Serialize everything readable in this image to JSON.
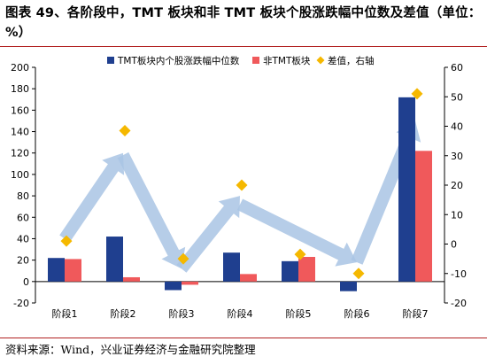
{
  "title": "图表 49、各阶段中，TMT 板块和非 TMT 板块个股涨跌幅中位数及差值（单位：%）",
  "source": "资料来源：Wind，兴业证券经济与金融研究院整理",
  "colors": {
    "series1": "#1f3f8f",
    "series2": "#f0595b",
    "diff": "#f5b800",
    "arrow": "#a9c4e4",
    "accent_rule": "#b22222"
  },
  "chart_data": {
    "type": "bar",
    "categories": [
      "阶段1",
      "阶段2",
      "阶段3",
      "阶段4",
      "阶段5",
      "阶段6",
      "阶段7"
    ],
    "series": [
      {
        "name": "TMT板块内个股涨跌幅中位数",
        "type": "bar",
        "axis": "left",
        "values": [
          22,
          42,
          -8,
          27,
          19,
          -9,
          172
        ]
      },
      {
        "name": "非TMT板块",
        "type": "bar",
        "axis": "left",
        "values": [
          21,
          4,
          -3,
          7,
          23,
          0,
          122
        ]
      },
      {
        "name": "差值，右轴",
        "type": "scatter",
        "axis": "right",
        "marker": "diamond",
        "values": [
          1,
          38.5,
          -5,
          20,
          -3.5,
          -10,
          51
        ]
      }
    ],
    "y_left": {
      "min": -20,
      "max": 200,
      "ticks": [
        -20,
        0,
        20,
        40,
        60,
        80,
        100,
        120,
        140,
        160,
        180,
        200
      ]
    },
    "y_right": {
      "min": -20,
      "max": 60,
      "ticks": [
        -20,
        -10,
        0,
        10,
        20,
        30,
        40,
        50,
        60
      ]
    },
    "legend_position": "top-center",
    "grid": false,
    "annotations": [
      {
        "type": "arrow",
        "from_category": 0,
        "to_category": 1,
        "from_y": 40,
        "to_y": 120
      },
      {
        "type": "arrow",
        "from_category": 1,
        "to_category": 2,
        "from_y": 118,
        "to_y": 12
      },
      {
        "type": "arrow",
        "from_category": 2,
        "to_category": 3,
        "from_y": 12,
        "to_y": 80
      },
      {
        "type": "arrow",
        "from_category": 3,
        "to_category": 5,
        "from_y": 72,
        "to_y": 18
      },
      {
        "type": "arrow",
        "from_category": 5,
        "to_category": 6,
        "from_y": 18,
        "to_y": 150
      }
    ]
  }
}
